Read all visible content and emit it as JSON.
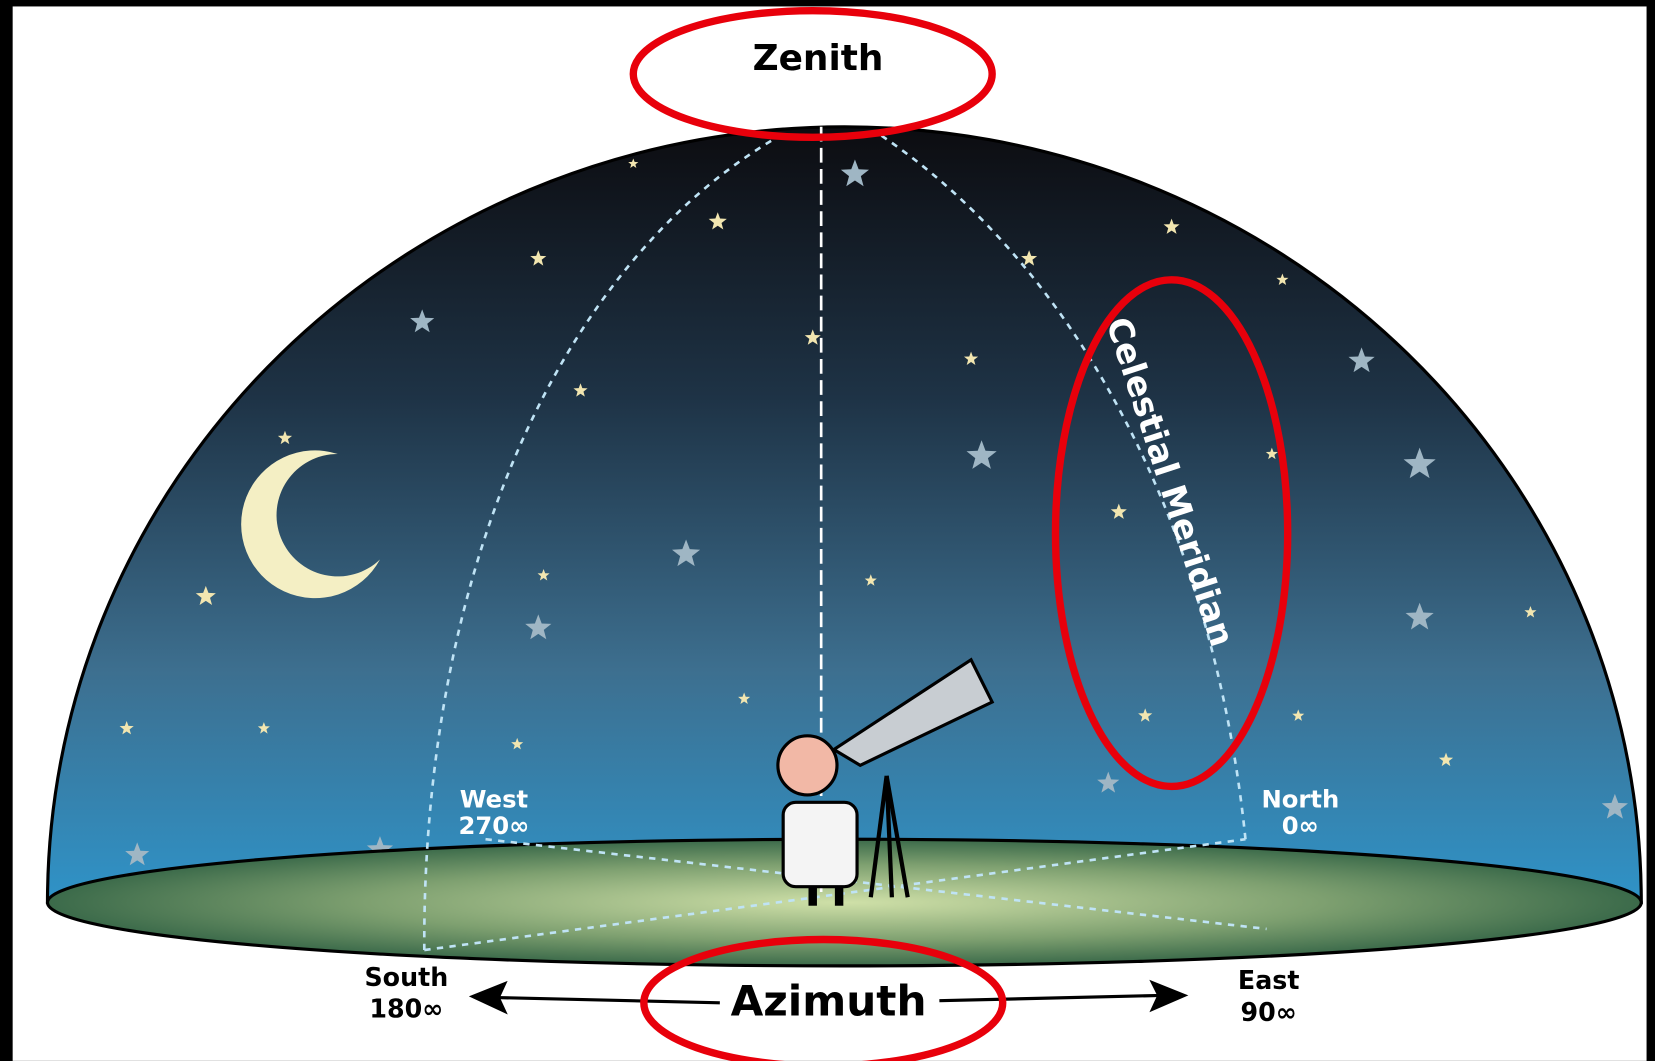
{
  "labels": {
    "zenith": "Zenith",
    "meridian": "Celestial Meridian",
    "west": {
      "name": "West",
      "degrees": "270∞"
    },
    "north": {
      "name": "North",
      "degrees": "0∞"
    },
    "south": {
      "name": "South",
      "degrees": "180∞"
    },
    "east": {
      "name": "East",
      "degrees": "90∞"
    },
    "azimuth": "Azimuth"
  }
}
